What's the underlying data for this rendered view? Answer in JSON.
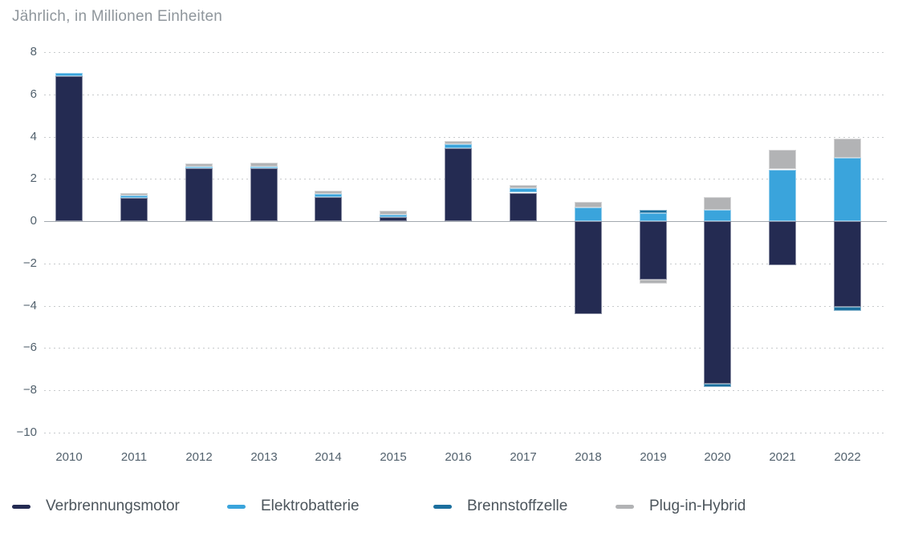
{
  "chart_data": {
    "type": "bar",
    "stacked": true,
    "title": "Jährlich, in Millionen Einheiten",
    "categories": [
      "2010",
      "2011",
      "2012",
      "2013",
      "2014",
      "2015",
      "2016",
      "2017",
      "2018",
      "2019",
      "2020",
      "2021",
      "2022"
    ],
    "series": [
      {
        "name": "Verbrennungsmotor",
        "color": "#242b52",
        "values": [
          6.85,
          1.1,
          2.5,
          2.5,
          1.15,
          0.2,
          3.45,
          1.35,
          -4.4,
          -2.75,
          -7.7,
          -2.1,
          -4.05
        ]
      },
      {
        "name": "Elektrobatterie",
        "color": "#3aa4dc",
        "values": [
          0.15,
          0.1,
          0.1,
          0.1,
          0.15,
          0.1,
          0.2,
          0.2,
          0.65,
          0.4,
          0.55,
          2.45,
          3.0
        ]
      },
      {
        "name": "Brennstoffzelle",
        "color": "#1b6f9e",
        "values": [
          0,
          0,
          0,
          0,
          0,
          0,
          0,
          0,
          0,
          0.12,
          -0.15,
          0,
          -0.18
        ]
      },
      {
        "name": "Plug-in-Hybrid",
        "color": "#b2b3b5",
        "values": [
          0,
          0.13,
          0.15,
          0.17,
          0.15,
          0.18,
          0.15,
          0.15,
          0.25,
          -0.2,
          0.58,
          0.92,
          0.9
        ]
      }
    ],
    "ylim": [
      -10,
      8
    ],
    "y_tick_values": [
      8,
      6,
      4,
      2,
      0,
      -2,
      -4,
      -6,
      -8,
      -10
    ],
    "y_tick_labels": [
      "8",
      "6",
      "4",
      "2",
      "0",
      "−2",
      "−4",
      "−6",
      "−8",
      "−10"
    ],
    "xlabel": "",
    "ylabel": "",
    "grid": "horizontal-dotted",
    "legend_position": "bottom"
  }
}
